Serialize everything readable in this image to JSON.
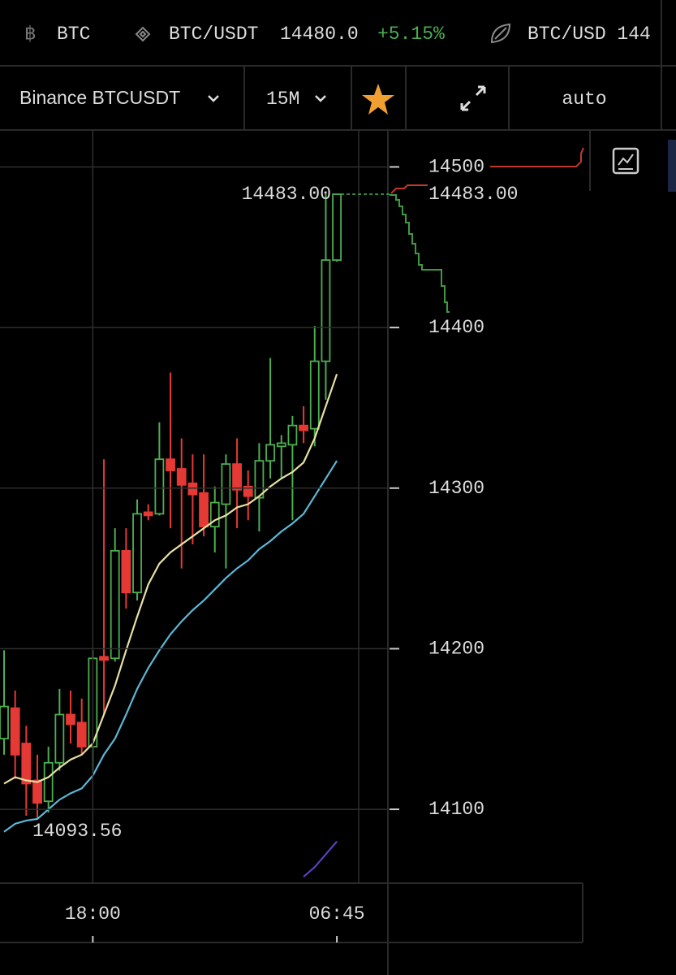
{
  "ticker": [
    {
      "symbol": "BTC"
    },
    {
      "symbol": "BTC/USDT",
      "price": "14480.0",
      "change": "+5.15%"
    },
    {
      "symbol": "BTC/USD 144"
    }
  ],
  "toolbar": {
    "market": "Binance BTCUSDT",
    "interval": "15M",
    "scale": "auto"
  },
  "chart_data": {
    "type": "candlestick",
    "categories": [
      null,
      null,
      null,
      null,
      null,
      null,
      null,
      null,
      "18:00",
      null,
      null,
      null,
      null,
      null,
      null,
      null,
      null,
      null,
      null,
      null,
      null,
      null,
      null,
      null,
      null,
      null,
      null,
      null,
      null,
      null,
      "06:45"
    ],
    "open": [
      14144,
      14163,
      14141,
      14118,
      14105,
      14129,
      14159,
      14154,
      14139,
      14195,
      14194,
      14261,
      14235,
      14285,
      14284,
      14318,
      14312,
      14303,
      14297,
      14276,
      14290,
      14315,
      14301,
      14294,
      14317,
      14326,
      14327,
      14339,
      14337,
      14379,
      14442
    ],
    "high": [
      14199,
      14174,
      14152,
      14134,
      14139,
      14175,
      14174,
      14169,
      14199,
      14318,
      14275,
      14275,
      14293,
      14290,
      14341,
      14372,
      14331,
      14321,
      14321,
      14301,
      14321,
      14331,
      14311,
      14328,
      14381,
      14333,
      14345,
      14351,
      14401,
      14483,
      14483
    ],
    "low": [
      14134,
      14119,
      14096,
      14093.56,
      14098,
      14124,
      14141,
      14134,
      14124,
      14159,
      14192,
      14225,
      14230,
      14280,
      14283,
      14275,
      14250,
      14265,
      14270,
      14260,
      14250,
      14275,
      14280,
      14273,
      14306,
      14306,
      14280,
      14328,
      14326,
      14355,
      14441
    ],
    "close": [
      14164,
      14134,
      14116,
      14104,
      14129,
      14159,
      14153,
      14139,
      14194,
      14193,
      14261,
      14235,
      14284,
      14283,
      14318,
      14311,
      14302,
      14296,
      14276,
      14291,
      14315,
      14299,
      14295,
      14317,
      14327,
      14328,
      14339,
      14336,
      14379,
      14442,
      14483
    ],
    "up_color": "#4caf50",
    "down_color": "#e53935",
    "series": [
      {
        "color": "#e8e0a0",
        "values": [
          14116,
          14120,
          14118,
          14117,
          14120,
          14126,
          14131,
          14134,
          14141,
          14159,
          14177,
          14199,
          14220,
          14240,
          14253,
          14260,
          14265,
          14270,
          14275,
          14280,
          14283,
          14288,
          14290,
          14295,
          14301,
          14306,
          14310,
          14316,
          14331,
          14351,
          14371
        ]
      },
      {
        "color": "#5bb8d8",
        "values": [
          14086,
          14091,
          14093,
          14094,
          14100,
          14106,
          14110,
          14113,
          14121,
          14134,
          14144,
          14159,
          14175,
          14188,
          14199,
          14209,
          14217,
          14224,
          14230,
          14237,
          14244,
          14250,
          14255,
          14262,
          14267,
          14273,
          14278,
          14284,
          14295,
          14306,
          14317
        ]
      },
      {
        "color": "#5a3fc0",
        "values": [
          null,
          null,
          null,
          null,
          null,
          null,
          null,
          null,
          null,
          null,
          null,
          null,
          null,
          null,
          null,
          null,
          null,
          null,
          null,
          null,
          null,
          null,
          null,
          null,
          null,
          null,
          null,
          14058,
          14064,
          14072,
          14080
        ]
      }
    ],
    "last_price": {
      "value": 14483,
      "label": "14483.00"
    },
    "ylim": [
      14054,
      14523
    ],
    "yticks": [
      14100,
      14200,
      14300,
      14400,
      14500
    ],
    "grid": true
  }
}
